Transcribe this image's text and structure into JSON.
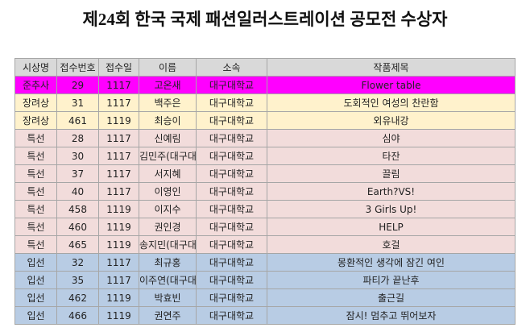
{
  "header": {
    "title": "제24회 한국 국제 패션일러스트레이션 공모전 수상자"
  },
  "table": {
    "header": [
      "시상명",
      "접수번호",
      "접수일",
      "이름",
      "소속",
      "작품제목"
    ],
    "header_color": "#d9d9d9",
    "rows": [
      {
        "color": "#ff00ff",
        "cells": [
          "준추사",
          29,
          1117,
          "고온새",
          "대구대학교",
          "Flower table"
        ]
      },
      {
        "color": "#fff2cc",
        "cells": [
          "장려상",
          31,
          1117,
          "백주은",
          "대구대학교",
          "도회적인 여성의 찬란함"
        ]
      },
      {
        "color": "#fff2cc",
        "cells": [
          "장려상",
          461,
          1119,
          "최승이",
          "대구대학교",
          "외유내강"
        ]
      },
      {
        "color": "#f2dcdb",
        "cells": [
          "특선",
          28,
          1117,
          "신예림",
          "대구대학교",
          "심야"
        ]
      },
      {
        "color": "#f2dcdb",
        "cells": [
          "특선",
          30,
          1117,
          "김민주(대구대)",
          "대구대학교",
          "타잔"
        ]
      },
      {
        "color": "#f2dcdb",
        "cells": [
          "특선",
          37,
          1117,
          "서지혜",
          "대구대학교",
          "끌림"
        ]
      },
      {
        "color": "#f2dcdb",
        "cells": [
          "특선",
          40,
          1117,
          "이영인",
          "대구대학교",
          "Earth?VS!"
        ]
      },
      {
        "color": "#f2dcdb",
        "cells": [
          "특선",
          458,
          1119,
          "이지수",
          "대구대학교",
          "3 Girls Up!"
        ]
      },
      {
        "color": "#f2dcdb",
        "cells": [
          "특선",
          460,
          1119,
          "권인경",
          "대구대학교",
          "HELP"
        ]
      },
      {
        "color": "#f2dcdb",
        "cells": [
          "특선",
          465,
          1119,
          "송지민(대구대)",
          "대구대학교",
          "호걸"
        ]
      },
      {
        "color": "#b8cce4",
        "cells": [
          "입선",
          32,
          1117,
          "최규홍",
          "대구대학교",
          "몽환적인 생각에 잠긴 여인"
        ]
      },
      {
        "color": "#b8cce4",
        "cells": [
          "입선",
          35,
          1117,
          "이주연(대구대)",
          "대구대학교",
          "파티가 끝난후"
        ]
      },
      {
        "color": "#b8cce4",
        "cells": [
          "입선",
          462,
          1119,
          "박효빈",
          "대구대학교",
          "출근길"
        ]
      },
      {
        "color": "#b8cce4",
        "cells": [
          "입선",
          466,
          1119,
          "권연주",
          "대구대학교",
          "잠시! 멈추고 뛰어보자"
        ]
      }
    ]
  }
}
